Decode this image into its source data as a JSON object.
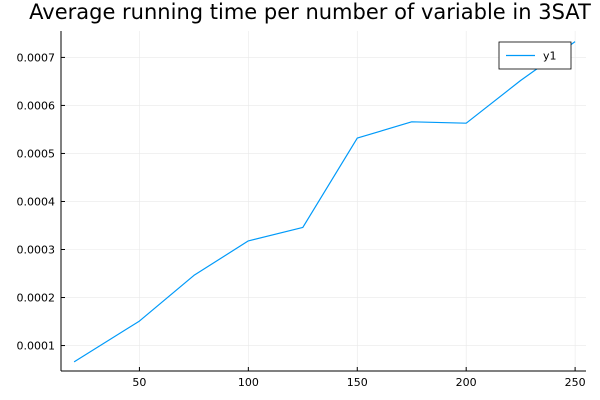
{
  "chart_data": {
    "type": "line",
    "title": "Average running time per number of variable in 3SAT",
    "xlabel": "",
    "ylabel": "",
    "xlim": [
      14,
      255
    ],
    "ylim": [
      4.7e-05,
      0.000755
    ],
    "x_ticks": [
      50,
      100,
      150,
      200,
      250
    ],
    "y_ticks": [
      0.0001,
      0.0002,
      0.0003,
      0.0004,
      0.0005,
      0.0006,
      0.0007
    ],
    "x_tick_labels": [
      "50",
      "100",
      "150",
      "200",
      "250"
    ],
    "y_tick_labels": [
      "0.0001",
      "0.0002",
      "0.0003",
      "0.0004",
      "0.0005",
      "0.0006",
      "0.0007"
    ],
    "grid": true,
    "legend_position": "top-right",
    "series": [
      {
        "name": "y1",
        "color": "#009af9",
        "x": [
          20,
          50,
          75,
          100,
          125,
          150,
          175,
          200,
          225,
          250
        ],
        "y": [
          6.6e-05,
          0.000151,
          0.000246,
          0.000318,
          0.000346,
          0.000532,
          0.000566,
          0.000563,
          0.000652,
          0.000733
        ]
      }
    ]
  }
}
